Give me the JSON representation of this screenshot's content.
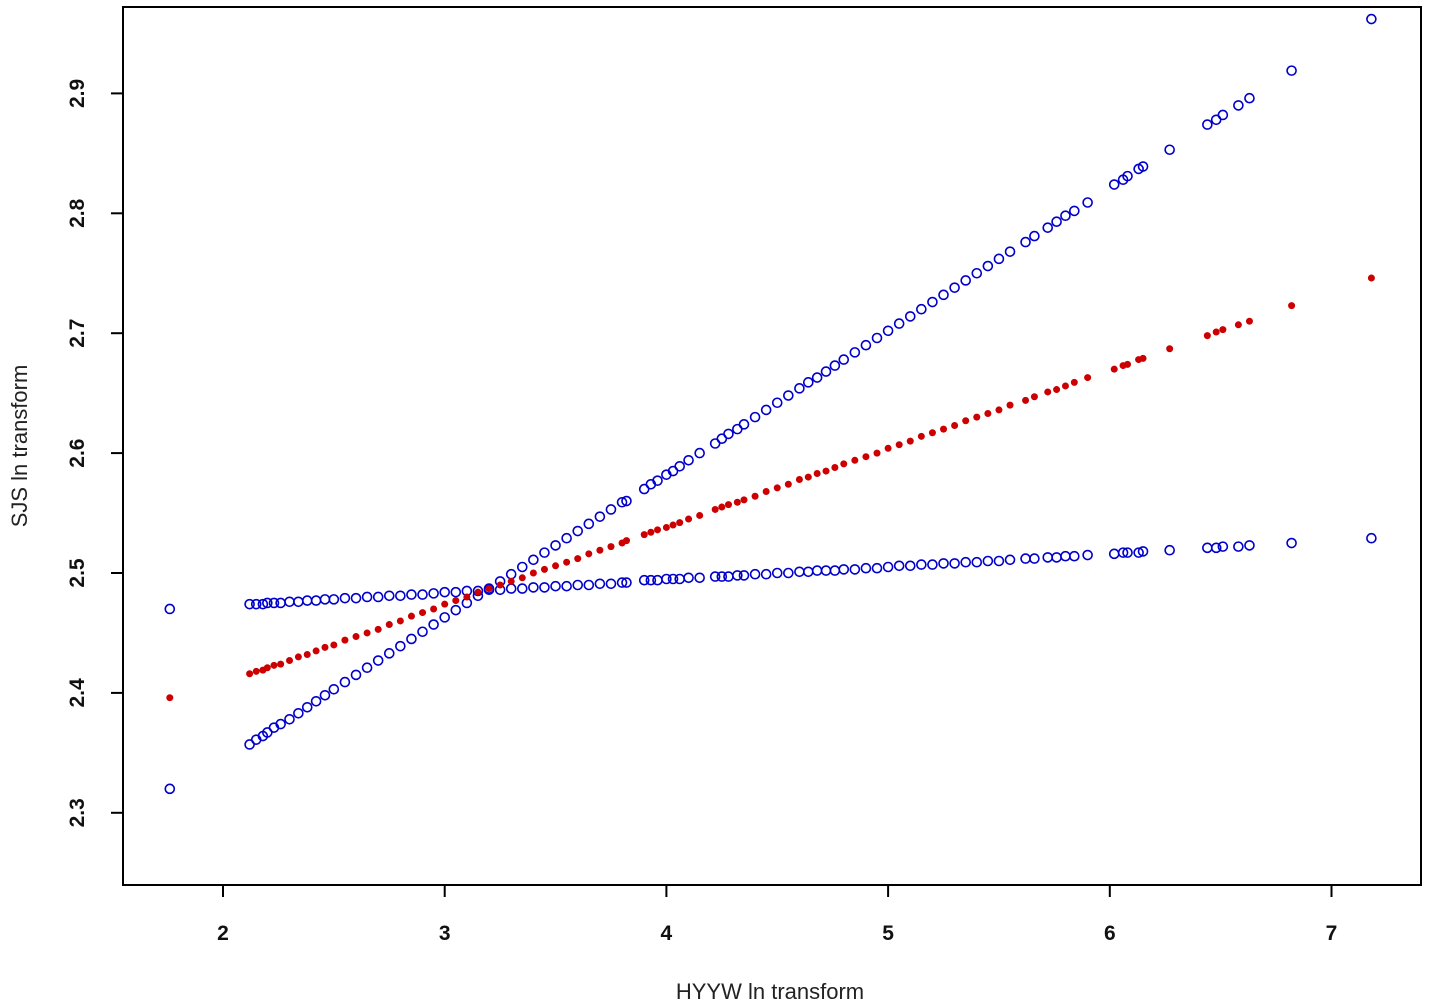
{
  "chart_data": {
    "type": "scatter",
    "title": "",
    "xlabel": "HYYW ln transform",
    "ylabel": "SJS ln transform",
    "xlim": [
      1.55,
      7.4
    ],
    "ylim": [
      2.24,
      2.97
    ],
    "x_ticks": [
      2,
      3,
      4,
      5,
      6,
      7
    ],
    "y_ticks": [
      2.3,
      2.4,
      2.5,
      2.6,
      2.7,
      2.8,
      2.9
    ],
    "x_tick_labels": [
      "2",
      "3",
      "4",
      "5",
      "6",
      "7"
    ],
    "y_tick_labels": [
      "2.3",
      "2.4",
      "2.5",
      "2.6",
      "2.7",
      "2.8",
      "2.9"
    ],
    "grid": false,
    "x": [
      1.76,
      2.12,
      2.15,
      2.18,
      2.2,
      2.23,
      2.26,
      2.3,
      2.34,
      2.38,
      2.42,
      2.46,
      2.5,
      2.55,
      2.6,
      2.65,
      2.7,
      2.75,
      2.8,
      2.85,
      2.9,
      2.95,
      3.0,
      3.05,
      3.1,
      3.15,
      3.2,
      3.25,
      3.3,
      3.35,
      3.4,
      3.45,
      3.5,
      3.55,
      3.6,
      3.65,
      3.7,
      3.75,
      3.8,
      3.82,
      3.9,
      3.93,
      3.96,
      4.0,
      4.03,
      4.06,
      4.1,
      4.15,
      4.22,
      4.25,
      4.28,
      4.32,
      4.35,
      4.4,
      4.45,
      4.5,
      4.55,
      4.6,
      4.64,
      4.68,
      4.72,
      4.76,
      4.8,
      4.85,
      4.9,
      4.95,
      5.0,
      5.05,
      5.1,
      5.15,
      5.2,
      5.25,
      5.3,
      5.35,
      5.4,
      5.45,
      5.5,
      5.55,
      5.62,
      5.66,
      5.72,
      5.76,
      5.8,
      5.84,
      5.9,
      6.02,
      6.06,
      6.08,
      6.13,
      6.15,
      6.27,
      6.44,
      6.48,
      6.51,
      6.58,
      6.63,
      6.82,
      7.18
    ],
    "series": [
      {
        "color": "#0000cc",
        "marker": "open-circle",
        "values": [
          2.32,
          2.357,
          2.361,
          2.364,
          2.367,
          2.371,
          2.374,
          2.378,
          2.383,
          2.388,
          2.393,
          2.398,
          2.403,
          2.409,
          2.415,
          2.421,
          2.427,
          2.433,
          2.439,
          2.445,
          2.451,
          2.457,
          2.463,
          2.469,
          2.475,
          2.481,
          2.487,
          2.493,
          2.499,
          2.505,
          2.511,
          2.517,
          2.523,
          2.529,
          2.535,
          2.541,
          2.547,
          2.553,
          2.559,
          2.56,
          2.57,
          2.574,
          2.577,
          2.582,
          2.585,
          2.589,
          2.594,
          2.6,
          2.608,
          2.612,
          2.616,
          2.62,
          2.624,
          2.63,
          2.636,
          2.642,
          2.648,
          2.654,
          2.659,
          2.663,
          2.668,
          2.673,
          2.678,
          2.684,
          2.69,
          2.696,
          2.702,
          2.708,
          2.714,
          2.72,
          2.726,
          2.732,
          2.738,
          2.744,
          2.75,
          2.756,
          2.762,
          2.768,
          2.776,
          2.781,
          2.788,
          2.793,
          2.798,
          2.802,
          2.809,
          2.824,
          2.828,
          2.831,
          2.837,
          2.839,
          2.853,
          2.874,
          2.878,
          2.882,
          2.89,
          2.896,
          2.919,
          2.962
        ]
      },
      {
        "color": "#0000cc",
        "marker": "open-circle",
        "values": [
          2.47,
          2.474,
          2.474,
          2.474,
          2.475,
          2.475,
          2.475,
          2.476,
          2.476,
          2.477,
          2.477,
          2.478,
          2.478,
          2.479,
          2.479,
          2.48,
          2.48,
          2.481,
          2.481,
          2.482,
          2.482,
          2.483,
          2.484,
          2.484,
          2.485,
          2.485,
          2.486,
          2.486,
          2.487,
          2.487,
          2.488,
          2.488,
          2.489,
          2.489,
          2.49,
          2.49,
          2.491,
          2.491,
          2.492,
          2.492,
          2.494,
          2.494,
          2.494,
          2.495,
          2.495,
          2.495,
          2.496,
          2.496,
          2.497,
          2.497,
          2.497,
          2.498,
          2.498,
          2.499,
          2.499,
          2.5,
          2.5,
          2.501,
          2.501,
          2.502,
          2.502,
          2.502,
          2.503,
          2.503,
          2.504,
          2.504,
          2.505,
          2.506,
          2.506,
          2.507,
          2.507,
          2.508,
          2.508,
          2.509,
          2.509,
          2.51,
          2.51,
          2.511,
          2.512,
          2.512,
          2.513,
          2.513,
          2.514,
          2.514,
          2.515,
          2.516,
          2.517,
          2.517,
          2.517,
          2.518,
          2.519,
          2.521,
          2.521,
          2.522,
          2.522,
          2.523,
          2.525,
          2.529
        ]
      },
      {
        "color": "#cc0000",
        "marker": "filled-dot",
        "values": [
          2.396,
          2.416,
          2.418,
          2.419,
          2.421,
          2.423,
          2.424,
          2.427,
          2.43,
          2.432,
          2.435,
          2.438,
          2.44,
          2.444,
          2.447,
          2.45,
          2.453,
          2.457,
          2.46,
          2.464,
          2.467,
          2.47,
          2.474,
          2.477,
          2.48,
          2.484,
          2.487,
          2.49,
          2.493,
          2.496,
          2.5,
          2.503,
          2.506,
          2.509,
          2.512,
          2.516,
          2.519,
          2.522,
          2.525,
          2.527,
          2.532,
          2.534,
          2.536,
          2.538,
          2.54,
          2.542,
          2.545,
          2.548,
          2.553,
          2.555,
          2.557,
          2.559,
          2.561,
          2.564,
          2.568,
          2.571,
          2.574,
          2.578,
          2.58,
          2.583,
          2.585,
          2.588,
          2.591,
          2.594,
          2.597,
          2.6,
          2.604,
          2.607,
          2.61,
          2.614,
          2.617,
          2.62,
          2.623,
          2.627,
          2.63,
          2.633,
          2.636,
          2.64,
          2.644,
          2.647,
          2.651,
          2.653,
          2.656,
          2.659,
          2.663,
          2.67,
          2.673,
          2.674,
          2.678,
          2.679,
          2.687,
          2.698,
          2.701,
          2.703,
          2.707,
          2.71,
          2.723,
          2.746
        ]
      }
    ]
  }
}
